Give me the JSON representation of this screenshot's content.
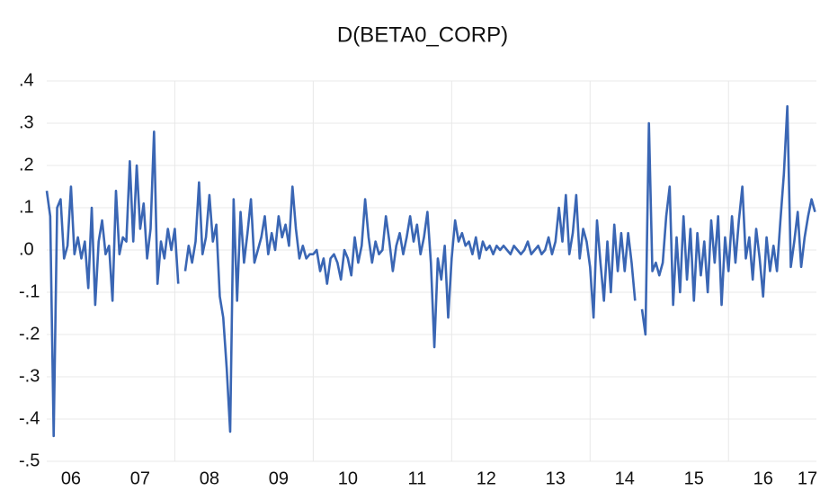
{
  "chart_data": {
    "type": "line",
    "title": "D(BETA0_CORP)",
    "x": [
      2006.15,
      2006.2,
      2006.25,
      2006.3,
      2006.35,
      2006.4,
      2006.45,
      2006.5,
      2006.55,
      2006.6,
      2006.65,
      2006.7,
      2006.75,
      2006.8,
      2006.85,
      2006.9,
      2006.95,
      2007,
      2007.05,
      2007.1,
      2007.15,
      2007.2,
      2007.25,
      2007.3,
      2007.35,
      2007.4,
      2007.45,
      2007.5,
      2007.55,
      2007.6,
      2007.65,
      2007.7,
      2007.75,
      2007.8,
      2007.85,
      2007.9,
      2007.95,
      2008,
      2008.05,
      2008.1,
      2008.15,
      2008.2,
      2008.25,
      2008.3,
      2008.35,
      2008.4,
      2008.45,
      2008.5,
      2008.55,
      2008.6,
      2008.65,
      2008.7,
      2008.75,
      2008.8,
      2008.85,
      2008.9,
      2008.95,
      2009,
      2009.05,
      2009.1,
      2009.15,
      2009.2,
      2009.25,
      2009.3,
      2009.35,
      2009.4,
      2009.45,
      2009.5,
      2009.55,
      2009.6,
      2009.65,
      2009.7,
      2009.75,
      2009.8,
      2009.85,
      2009.9,
      2009.95,
      2010,
      2010.05,
      2010.1,
      2010.15,
      2010.2,
      2010.25,
      2010.3,
      2010.35,
      2010.4,
      2010.45,
      2010.5,
      2010.55,
      2010.6,
      2010.65,
      2010.7,
      2010.75,
      2010.8,
      2010.85,
      2010.9,
      2010.95,
      2011,
      2011.05,
      2011.1,
      2011.15,
      2011.2,
      2011.25,
      2011.3,
      2011.35,
      2011.4,
      2011.45,
      2011.5,
      2011.55,
      2011.6,
      2011.65,
      2011.7,
      2011.75,
      2011.8,
      2011.85,
      2011.9,
      2011.95,
      2012,
      2012.05,
      2012.1,
      2012.15,
      2012.2,
      2012.25,
      2012.3,
      2012.35,
      2012.4,
      2012.45,
      2012.5,
      2012.55,
      2012.6,
      2012.65,
      2012.7,
      2012.75,
      2012.8,
      2012.85,
      2012.9,
      2012.95,
      2013,
      2013.05,
      2013.1,
      2013.15,
      2013.2,
      2013.25,
      2013.3,
      2013.35,
      2013.4,
      2013.45,
      2013.5,
      2013.55,
      2013.6,
      2013.65,
      2013.7,
      2013.75,
      2013.8,
      2013.85,
      2013.9,
      2013.95,
      2014,
      2014.05,
      2014.1,
      2014.15,
      2014.2,
      2014.25,
      2014.3,
      2014.35,
      2014.4,
      2014.45,
      2014.5,
      2014.55,
      2014.6,
      2014.65,
      2014.7,
      2014.75,
      2014.8,
      2014.85,
      2014.9,
      2014.95,
      2015,
      2015.05,
      2015.1,
      2015.15,
      2015.2,
      2015.25,
      2015.3,
      2015.35,
      2015.4,
      2015.45,
      2015.5,
      2015.55,
      2015.6,
      2015.65,
      2015.7,
      2015.75,
      2015.8,
      2015.85,
      2015.9,
      2015.95,
      2016,
      2016.05,
      2016.1,
      2016.15,
      2016.2,
      2016.25,
      2016.3,
      2016.35,
      2016.4,
      2016.45,
      2016.5,
      2016.55,
      2016.6,
      2016.65,
      2016.7,
      2016.75,
      2016.8,
      2016.85,
      2016.9,
      2016.95,
      2017,
      2017.05,
      2017.1,
      2017.15,
      2017.2,
      2017.25
    ],
    "series": [
      {
        "color": "#3a66b4",
        "values": [
          0.14,
          0.08,
          -0.44,
          0.1,
          0.12,
          -0.02,
          0.01,
          0.15,
          -0.01,
          0.03,
          -0.02,
          0.02,
          -0.09,
          0.1,
          -0.13,
          0.02,
          0.07,
          -0.01,
          0.01,
          -0.12,
          0.14,
          -0.01,
          0.03,
          0.02,
          0.21,
          0.02,
          0.2,
          0.05,
          0.11,
          -0.02,
          0.05,
          0.28,
          -0.08,
          0.02,
          -0.02,
          0.05,
          0.0,
          0.05,
          -0.08,
          null,
          -0.05,
          0.01,
          -0.03,
          0.02,
          0.16,
          -0.01,
          0.03,
          0.13,
          0.02,
          0.06,
          -0.11,
          -0.16,
          -0.28,
          -0.43,
          0.12,
          -0.12,
          0.09,
          -0.03,
          0.04,
          0.12,
          -0.03,
          0.0,
          0.03,
          0.08,
          -0.01,
          0.04,
          0.0,
          0.08,
          0.03,
          0.06,
          0.01,
          0.15,
          0.05,
          -0.02,
          0.01,
          -0.02,
          -0.01,
          -0.01,
          0.0,
          -0.05,
          -0.02,
          -0.08,
          -0.02,
          -0.01,
          -0.03,
          -0.07,
          0.0,
          -0.02,
          -0.06,
          0.03,
          -0.03,
          0.01,
          0.12,
          0.03,
          -0.03,
          0.02,
          -0.01,
          0.0,
          0.08,
          0.02,
          -0.05,
          0.01,
          0.04,
          -0.01,
          0.03,
          0.08,
          0.02,
          0.06,
          -0.01,
          0.03,
          0.09,
          -0.03,
          -0.23,
          -0.02,
          -0.07,
          0.01,
          -0.16,
          -0.02,
          0.07,
          0.02,
          0.04,
          0.01,
          0.02,
          -0.01,
          0.03,
          -0.02,
          0.02,
          0.0,
          0.01,
          -0.01,
          0.01,
          0.0,
          0.01,
          0.0,
          -0.01,
          0.01,
          0.0,
          -0.01,
          0.0,
          0.02,
          -0.01,
          0.0,
          0.01,
          -0.01,
          0.0,
          0.03,
          -0.01,
          0.02,
          0.1,
          0.02,
          0.13,
          -0.01,
          0.04,
          0.13,
          -0.02,
          0.05,
          0.02,
          -0.04,
          -0.16,
          0.07,
          -0.03,
          -0.12,
          0.02,
          -0.1,
          0.06,
          -0.05,
          0.04,
          -0.05,
          0.04,
          -0.03,
          -0.12,
          null,
          -0.14,
          -0.2,
          0.3,
          -0.05,
          -0.03,
          -0.06,
          -0.03,
          0.08,
          0.15,
          -0.13,
          0.03,
          -0.1,
          0.08,
          -0.07,
          0.05,
          -0.12,
          0.04,
          -0.06,
          0.02,
          -0.1,
          0.07,
          -0.03,
          0.08,
          -0.13,
          0.03,
          -0.05,
          0.08,
          -0.03,
          0.07,
          0.15,
          -0.02,
          0.03,
          -0.07,
          0.05,
          -0.02,
          -0.11,
          0.03,
          -0.05,
          0.01,
          -0.05,
          0.07,
          0.18,
          0.34,
          -0.04,
          0.02,
          0.09,
          -0.04,
          0.03,
          0.08,
          0.12,
          0.09
        ]
      }
    ],
    "xlim": [
      2006.15,
      2017.27
    ],
    "xticks": [
      {
        "value": 2006.5,
        "label": "06"
      },
      {
        "value": 2007.5,
        "label": "07"
      },
      {
        "value": 2008.5,
        "label": "08"
      },
      {
        "value": 2009.5,
        "label": "09"
      },
      {
        "value": 2010.5,
        "label": "10"
      },
      {
        "value": 2011.5,
        "label": "11"
      },
      {
        "value": 2012.5,
        "label": "12"
      },
      {
        "value": 2013.5,
        "label": "13"
      },
      {
        "value": 2014.5,
        "label": "14"
      },
      {
        "value": 2015.5,
        "label": "15"
      },
      {
        "value": 2016.5,
        "label": "16"
      },
      {
        "value": 2017.5,
        "label": "17"
      }
    ],
    "xgrid": [
      2008,
      2010,
      2012,
      2014,
      2016
    ],
    "ylim": [
      -0.5,
      0.4
    ],
    "yticks": [
      {
        "value": 0.4,
        "label": ".4"
      },
      {
        "value": 0.3,
        "label": ".3"
      },
      {
        "value": 0.2,
        "label": ".2"
      },
      {
        "value": 0.1,
        "label": ".1"
      },
      {
        "value": 0,
        "label": ".0"
      },
      {
        "value": -0.1,
        "label": "-.1"
      },
      {
        "value": -0.2,
        "label": "-.2"
      },
      {
        "value": -0.3,
        "label": "-.3"
      },
      {
        "value": -0.4,
        "label": "-.4"
      },
      {
        "value": -0.5,
        "label": "-.5"
      }
    ],
    "grid": true
  }
}
